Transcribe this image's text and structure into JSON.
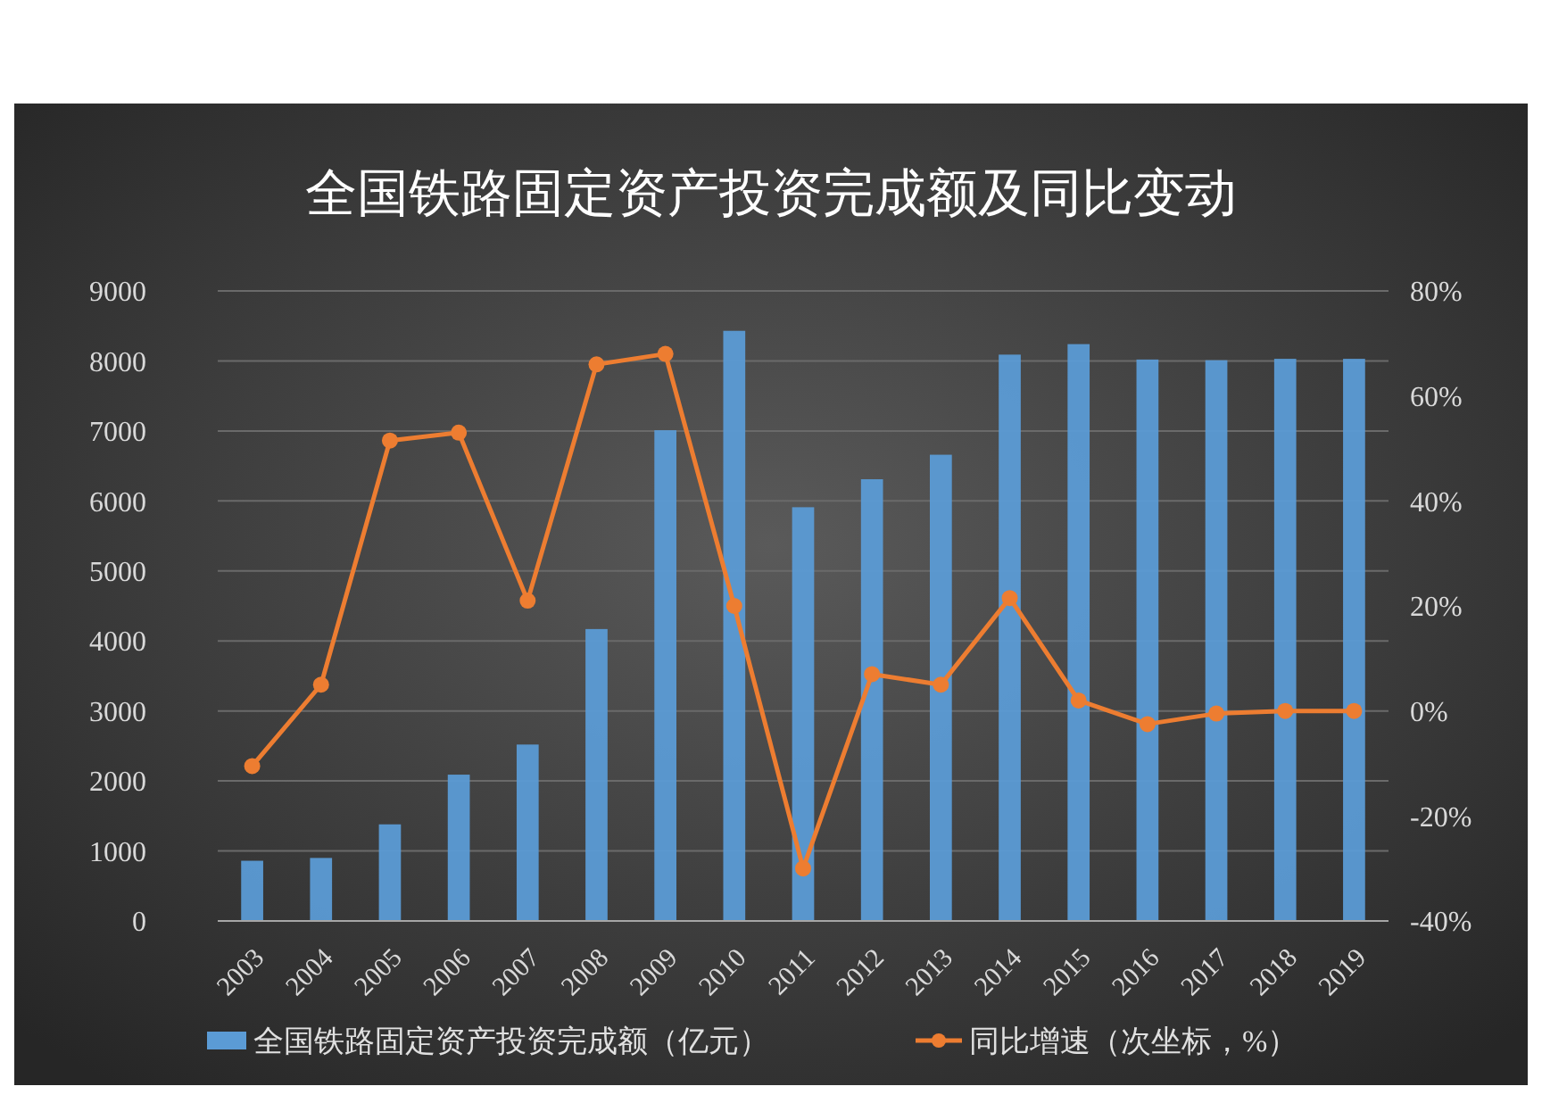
{
  "chart_data": {
    "type": "bar",
    "title": "全国铁路固定资产投资完成额及同比变动",
    "categories": [
      "2003",
      "2004",
      "2005",
      "2006",
      "2007",
      "2008",
      "2009",
      "2010",
      "2011",
      "2012",
      "2013",
      "2014",
      "2015",
      "2016",
      "2017",
      "2018",
      "2019"
    ],
    "series": [
      {
        "name": "全国铁路固定资产投资完成额（亿元）",
        "color": "#5b9bd5",
        "values": [
          860,
          900,
          1380,
          2090,
          2520,
          4170,
          7010,
          8430,
          5910,
          6310,
          6660,
          8090,
          8240,
          8020,
          8010,
          8030,
          8030
        ]
      },
      {
        "name": "同比增速（次坐标，%）",
        "type": "line",
        "axis": "y2",
        "color": "#ed7d31",
        "values": [
          -10.5,
          5,
          51.5,
          53,
          21,
          66,
          68,
          20,
          -30,
          7,
          5,
          21.5,
          2,
          -2.5,
          -0.5,
          0,
          0
        ]
      }
    ],
    "ylim": [
      0,
      9000
    ],
    "yticks": [
      0,
      1000,
      2000,
      3000,
      4000,
      5000,
      6000,
      7000,
      8000,
      9000
    ],
    "y2lim": [
      -40,
      80
    ],
    "y2ticks": [
      {
        "value": -40,
        "label": "-40%"
      },
      {
        "value": -20,
        "label": "-20%"
      },
      {
        "value": 0,
        "label": "0%"
      },
      {
        "value": 20,
        "label": "20%"
      },
      {
        "value": 40,
        "label": "40%"
      },
      {
        "value": 60,
        "label": "60%"
      },
      {
        "value": 80,
        "label": "80%"
      }
    ],
    "grid": "y",
    "legend": "bottom",
    "marker": "circle",
    "line_style": "solid"
  }
}
